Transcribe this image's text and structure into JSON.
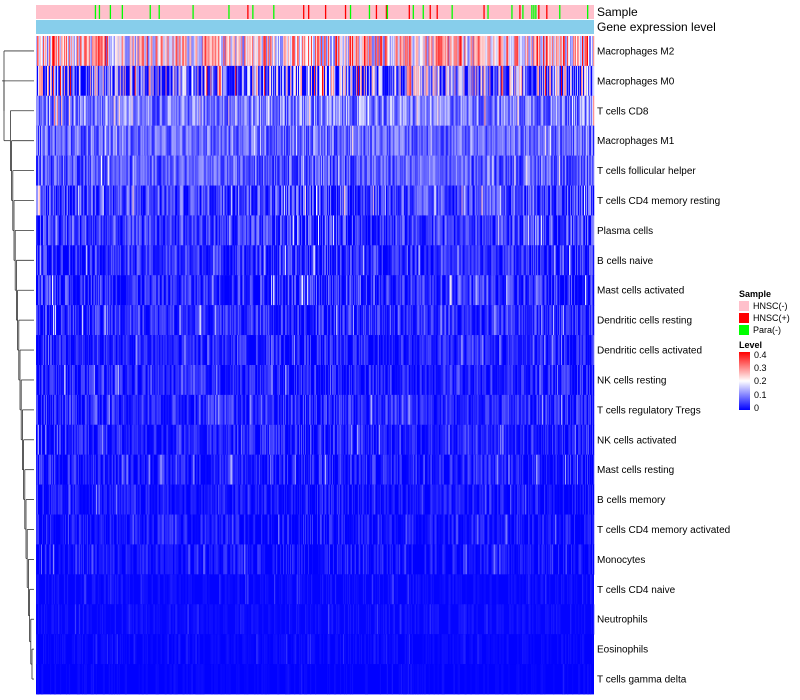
{
  "chart_data": {
    "type": "heatmap",
    "title": "",
    "annotation_tracks": [
      {
        "name": "Sample",
        "label": "Sample"
      },
      {
        "name": "Gene expression level",
        "label": "Gene expression level",
        "color": "#87ceeb"
      }
    ],
    "rows": [
      {
        "label": "Macrophages M2",
        "mean": 0.22,
        "spread": 0.14
      },
      {
        "label": "Macrophages M0",
        "mean": 0.08,
        "spread": 0.22
      },
      {
        "label": "T cells CD8",
        "mean": 0.1,
        "spread": 0.08
      },
      {
        "label": "Macrophages M1",
        "mean": 0.08,
        "spread": 0.06
      },
      {
        "label": "T cells follicular helper",
        "mean": 0.07,
        "spread": 0.06
      },
      {
        "label": "T cells CD4 memory resting",
        "mean": 0.05,
        "spread": 0.08
      },
      {
        "label": "Plasma cells",
        "mean": 0.04,
        "spread": 0.07
      },
      {
        "label": "B cells naive",
        "mean": 0.03,
        "spread": 0.06
      },
      {
        "label": "Mast cells activated",
        "mean": 0.03,
        "spread": 0.07
      },
      {
        "label": "Dendritic cells resting",
        "mean": 0.03,
        "spread": 0.06
      },
      {
        "label": "Dendritic cells activated",
        "mean": 0.02,
        "spread": 0.05
      },
      {
        "label": "NK cells resting",
        "mean": 0.02,
        "spread": 0.05
      },
      {
        "label": "T cells regulatory  Tregs",
        "mean": 0.03,
        "spread": 0.05
      },
      {
        "label": "NK cells activated",
        "mean": 0.02,
        "spread": 0.05
      },
      {
        "label": "Mast cells resting",
        "mean": 0.02,
        "spread": 0.05
      },
      {
        "label": "B cells memory",
        "mean": 0.01,
        "spread": 0.04
      },
      {
        "label": "T cells CD4 memory activated",
        "mean": 0.01,
        "spread": 0.04
      },
      {
        "label": "Monocytes",
        "mean": 0.01,
        "spread": 0.04
      },
      {
        "label": "T cells CD4 naive",
        "mean": 0.002,
        "spread": 0.02
      },
      {
        "label": "Neutrophils",
        "mean": 0.003,
        "spread": 0.02
      },
      {
        "label": "Eosinophils",
        "mean": 0.001,
        "spread": 0.015
      },
      {
        "label": "T cells gamma delta",
        "mean": 0.001,
        "spread": 0.01
      }
    ],
    "n_samples": 560,
    "legend_sample": {
      "title": "Sample",
      "entries": [
        {
          "label": "HNSC(-)",
          "color": "#ffc0cb"
        },
        {
          "label": "HNSC(+)",
          "color": "#ff0000"
        },
        {
          "label": "Para(-)",
          "color": "#00ff00"
        }
      ]
    },
    "legend_level": {
      "title": "Level",
      "ticks": [
        "0.4",
        "0.3",
        "0.2",
        "0.1",
        "0"
      ],
      "range": [
        0,
        0.4
      ],
      "colors": {
        "low": "#0000ff",
        "mid": "#ffffff",
        "high": "#ff0000"
      }
    }
  }
}
